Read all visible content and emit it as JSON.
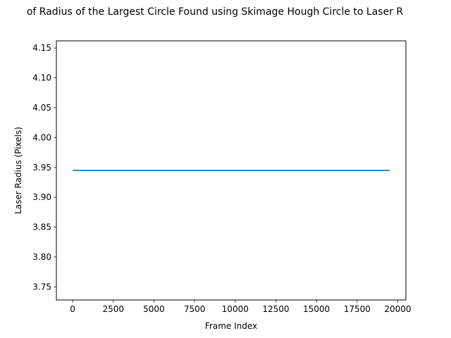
{
  "chart_data": {
    "type": "line",
    "title": "of Radius of the Largest Circle Found using Skimage Hough Circle to Laser R",
    "xlabel": "Frame Index",
    "ylabel": "Laser Radius (Pixels)",
    "xlim": [
      -1000,
      20500
    ],
    "ylim": [
      3.728,
      4.162
    ],
    "x_ticks": [
      0,
      2500,
      5000,
      7500,
      10000,
      12500,
      15000,
      17500,
      20000
    ],
    "y_ticks": [
      3.75,
      3.8,
      3.85,
      3.9,
      3.95,
      4.0,
      4.05,
      4.1,
      4.15
    ],
    "series": [
      {
        "x": [
          0,
          19500
        ],
        "y": [
          3.945,
          3.945
        ],
        "color": "#1f77b4"
      }
    ],
    "grid": false,
    "legend": "none"
  }
}
